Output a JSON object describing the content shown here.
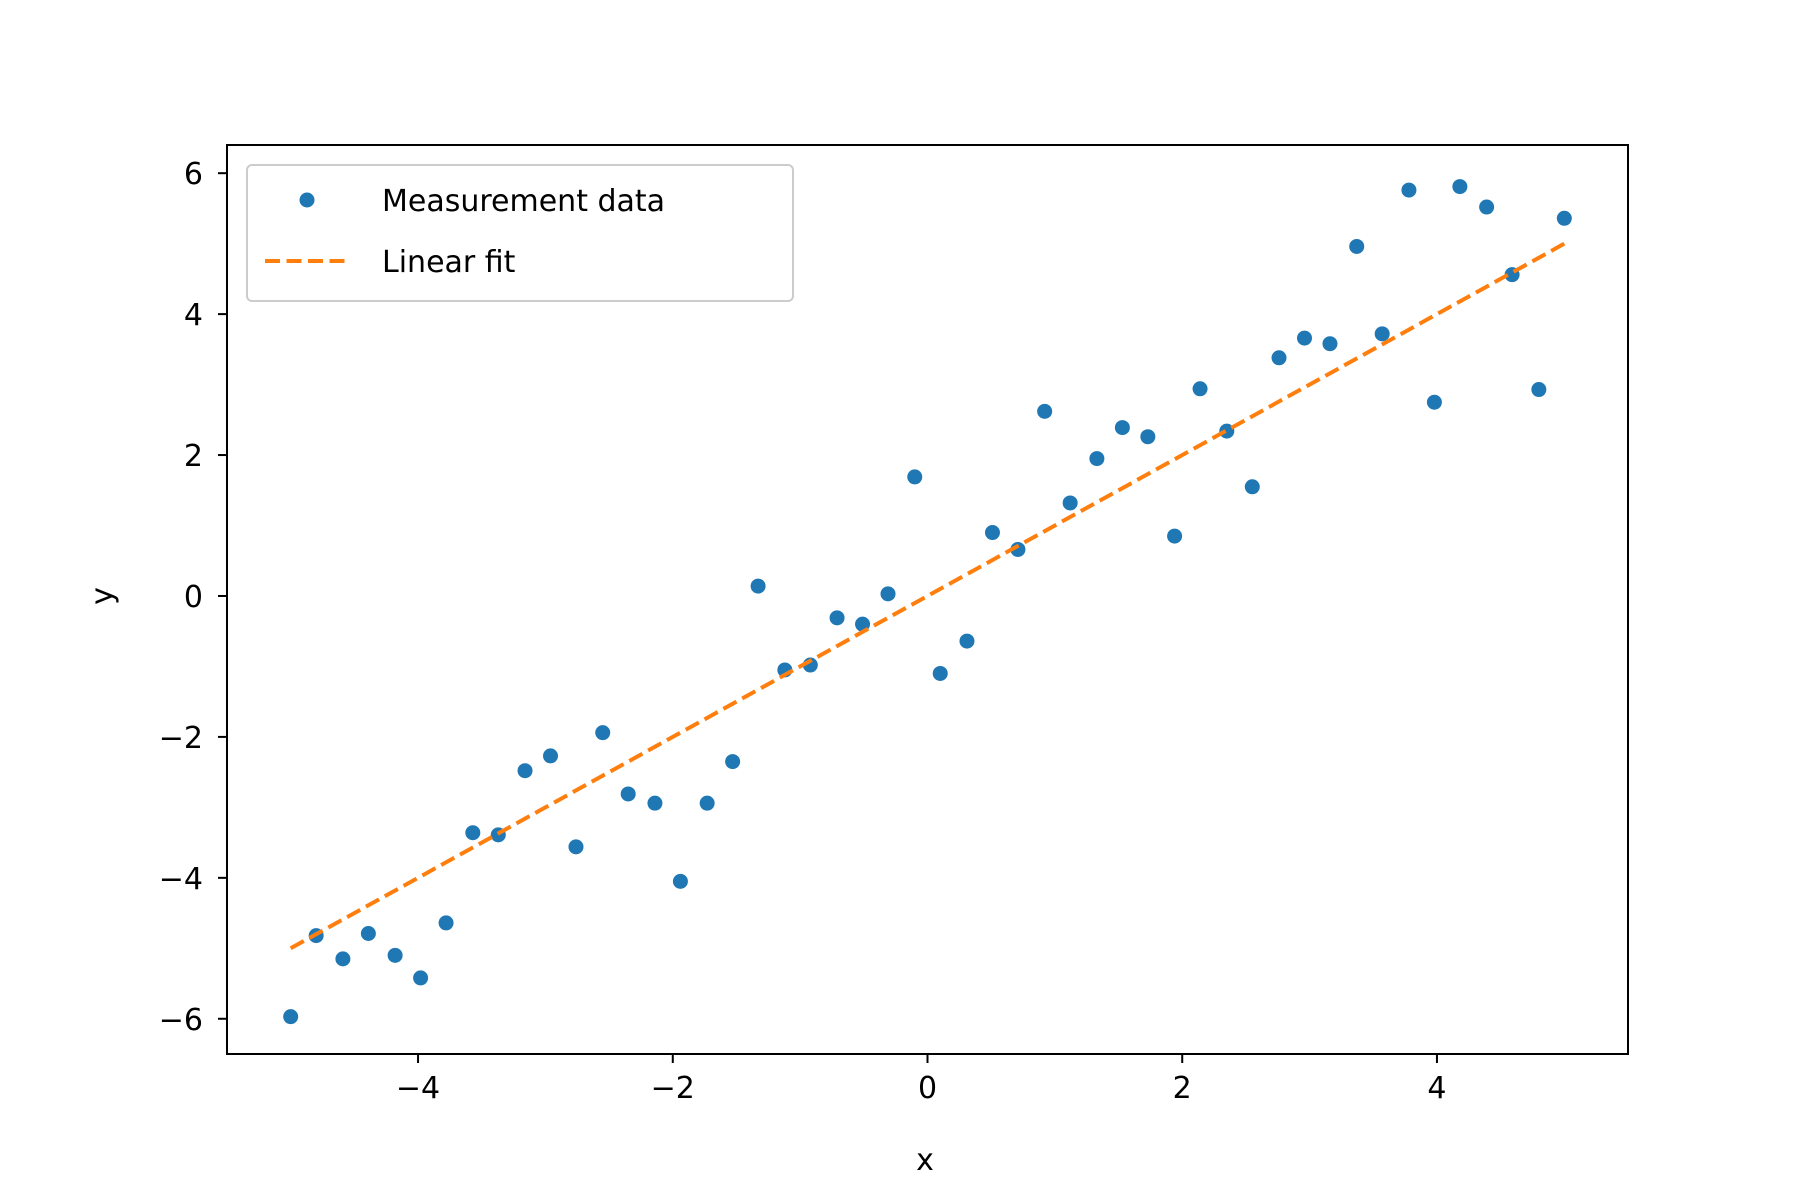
{
  "chart_data": {
    "type": "scatter",
    "title": "",
    "xlabel": "x",
    "ylabel": "y",
    "xlim": [
      -5.5,
      5.5
    ],
    "ylim": [
      -6.5,
      6.4
    ],
    "grid": false,
    "legend_position": "top-left",
    "xticks": [
      -4,
      -2,
      0,
      2,
      4
    ],
    "xtick_labels": [
      "−4",
      "−2",
      "0",
      "2",
      "4"
    ],
    "yticks": [
      -6,
      -4,
      -2,
      0,
      2,
      4,
      6
    ],
    "ytick_labels": [
      "−6",
      "−4",
      "−2",
      "0",
      "2",
      "4",
      "6"
    ],
    "series": [
      {
        "name": "Measurement data",
        "kind": "scatter",
        "color": "#1f77b4",
        "points": [
          {
            "x": -5.0,
            "y": -5.97
          },
          {
            "x": -4.8,
            "y": -4.82
          },
          {
            "x": -4.59,
            "y": -5.15
          },
          {
            "x": -4.39,
            "y": -4.79
          },
          {
            "x": -4.18,
            "y": -5.1
          },
          {
            "x": -3.98,
            "y": -5.42
          },
          {
            "x": -3.78,
            "y": -4.64
          },
          {
            "x": -3.57,
            "y": -3.36
          },
          {
            "x": -3.37,
            "y": -3.39
          },
          {
            "x": -3.16,
            "y": -2.48
          },
          {
            "x": -2.96,
            "y": -2.27
          },
          {
            "x": -2.76,
            "y": -3.56
          },
          {
            "x": -2.55,
            "y": -1.94
          },
          {
            "x": -2.35,
            "y": -2.81
          },
          {
            "x": -2.14,
            "y": -2.94
          },
          {
            "x": -1.94,
            "y": -4.05
          },
          {
            "x": -1.73,
            "y": -2.94
          },
          {
            "x": -1.53,
            "y": -2.35
          },
          {
            "x": -1.33,
            "y": 0.14
          },
          {
            "x": -1.12,
            "y": -1.05
          },
          {
            "x": -0.92,
            "y": -0.98
          },
          {
            "x": -0.71,
            "y": -0.31
          },
          {
            "x": -0.51,
            "y": -0.4
          },
          {
            "x": -0.31,
            "y": 0.03
          },
          {
            "x": -0.1,
            "y": 1.69
          },
          {
            "x": 0.1,
            "y": -1.1
          },
          {
            "x": 0.31,
            "y": -0.64
          },
          {
            "x": 0.51,
            "y": 0.9
          },
          {
            "x": 0.71,
            "y": 0.66
          },
          {
            "x": 0.92,
            "y": 2.62
          },
          {
            "x": 1.12,
            "y": 1.32
          },
          {
            "x": 1.33,
            "y": 1.95
          },
          {
            "x": 1.53,
            "y": 2.39
          },
          {
            "x": 1.73,
            "y": 2.26
          },
          {
            "x": 1.94,
            "y": 0.85
          },
          {
            "x": 2.14,
            "y": 2.94
          },
          {
            "x": 2.35,
            "y": 2.34
          },
          {
            "x": 2.55,
            "y": 1.55
          },
          {
            "x": 2.76,
            "y": 3.38
          },
          {
            "x": 2.96,
            "y": 3.66
          },
          {
            "x": 3.16,
            "y": 3.58
          },
          {
            "x": 3.37,
            "y": 4.96
          },
          {
            "x": 3.57,
            "y": 3.72
          },
          {
            "x": 3.78,
            "y": 5.76
          },
          {
            "x": 3.98,
            "y": 2.75
          },
          {
            "x": 4.18,
            "y": 5.81
          },
          {
            "x": 4.39,
            "y": 5.52
          },
          {
            "x": 4.59,
            "y": 4.56
          },
          {
            "x": 4.8,
            "y": 2.93
          },
          {
            "x": 5.0,
            "y": 5.36
          }
        ]
      },
      {
        "name": "Linear fit",
        "kind": "line",
        "style": "dashed",
        "color": "#ff7f0e",
        "points": [
          {
            "x": -5.0,
            "y": -5.0
          },
          {
            "x": 5.0,
            "y": 5.0
          }
        ]
      }
    ]
  }
}
